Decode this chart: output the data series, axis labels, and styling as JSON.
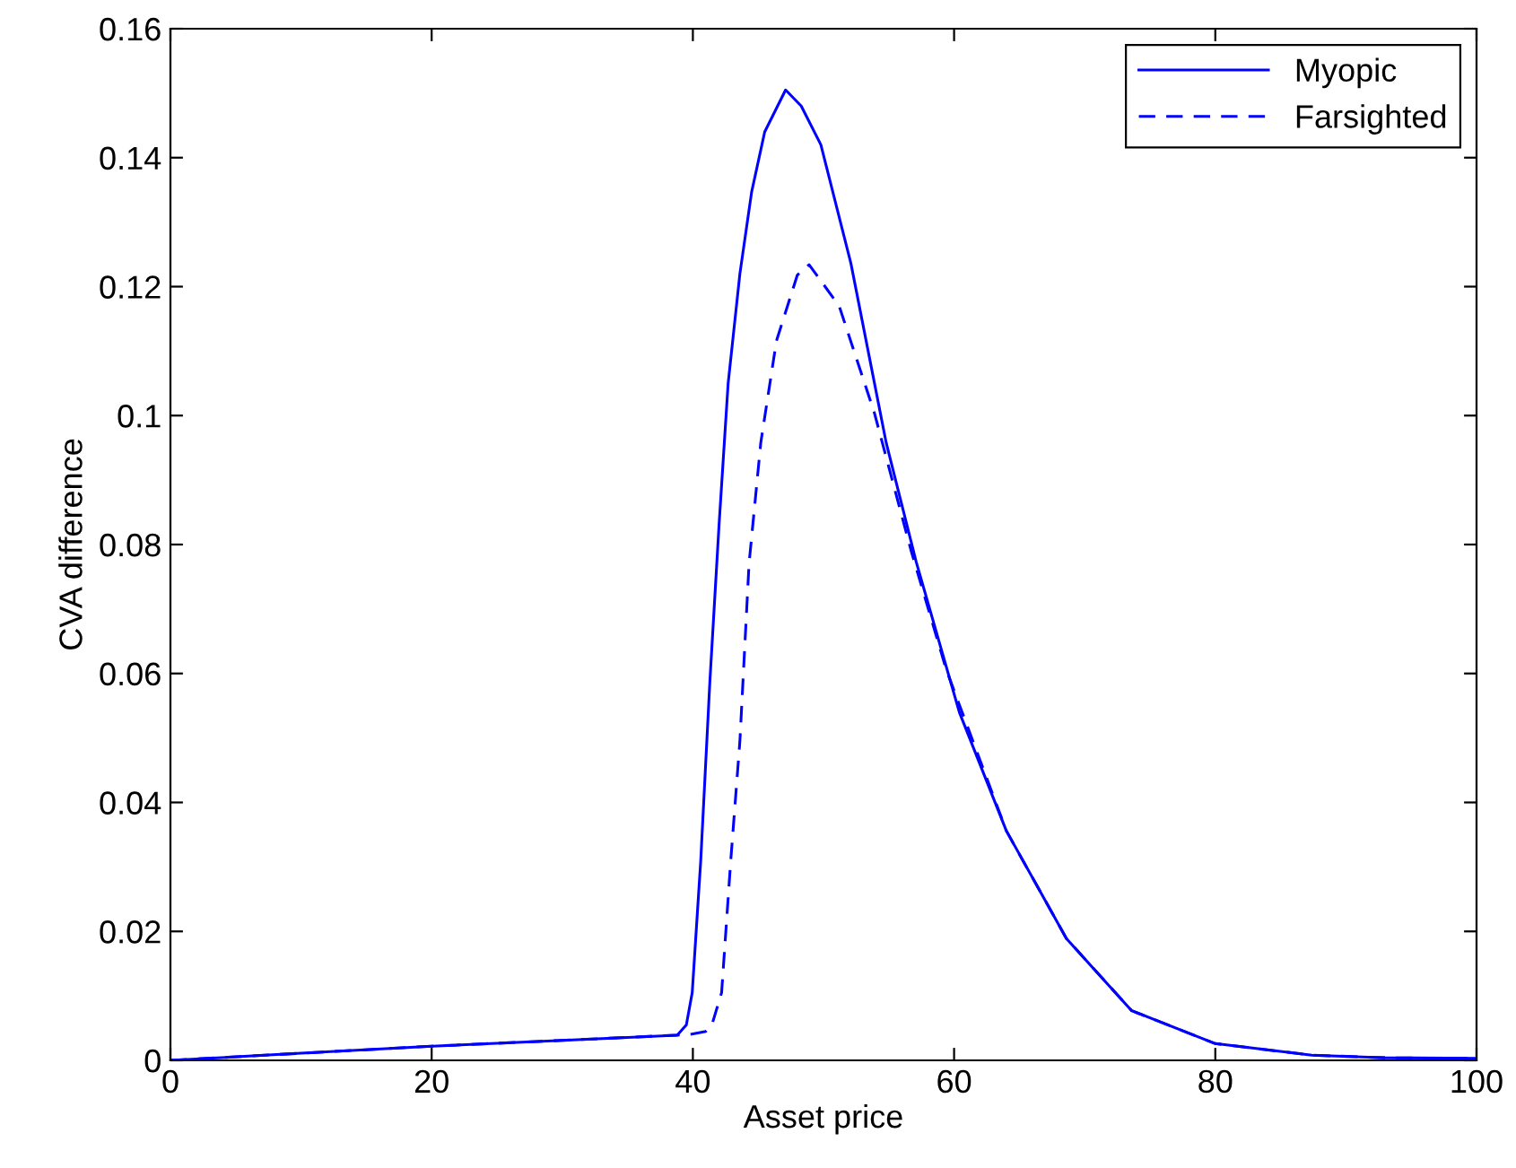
{
  "chart_data": {
    "type": "line",
    "xlabel": "Asset price",
    "ylabel": "CVA difference",
    "xlim": [
      0,
      100
    ],
    "ylim": [
      0,
      0.16
    ],
    "xticks": [
      0,
      20,
      40,
      60,
      80,
      100
    ],
    "yticks": [
      0,
      0.02,
      0.04,
      0.06,
      0.08,
      0.1,
      0.12,
      0.14,
      0.16
    ],
    "grid": false,
    "legend": "top right",
    "series": [
      {
        "name": "Myopic",
        "color": "#0000ff",
        "line_style": "solid",
        "x": [
          0,
          10,
          20,
          30,
          38.8,
          39.5,
          39.95,
          40.6,
          41.3,
          42.0,
          42.7,
          43.6,
          44.5,
          45.5,
          47.1,
          48.3,
          49.8,
          52.1,
          54.8,
          57.1,
          60.4,
          64.0,
          68.6,
          73.6,
          80,
          87.4,
          93,
          100
        ],
        "values": [
          0,
          0.0011,
          0.0022,
          0.0031,
          0.0039,
          0.0055,
          0.0105,
          0.0309,
          0.0587,
          0.0829,
          0.105,
          0.122,
          0.1347,
          0.144,
          0.1505,
          0.148,
          0.142,
          0.1236,
          0.0958,
          0.0773,
          0.054,
          0.0356,
          0.0189,
          0.0077,
          0.0026,
          0.0008,
          0.0004,
          0.0003
        ]
      },
      {
        "name": "Farsighted",
        "color": "#0000ff",
        "line_style": "dashed",
        "x": [
          0,
          10,
          20,
          30,
          39.7,
          41.0,
          41.5,
          42.2,
          42.9,
          43.6,
          44.3,
          45.2,
          46.4,
          48.0,
          48.9,
          51.2,
          53.9,
          56.7,
          59.4,
          64.0,
          68.6,
          73.6,
          80,
          87.4,
          93,
          100
        ],
        "values": [
          0,
          0.0011,
          0.0022,
          0.0031,
          0.004,
          0.0045,
          0.0058,
          0.0105,
          0.031,
          0.0495,
          0.077,
          0.0958,
          0.1116,
          0.1218,
          0.1234,
          0.117,
          0.1004,
          0.0791,
          0.0606,
          0.0356,
          0.0189,
          0.0077,
          0.0026,
          0.0008,
          0.0004,
          0.0003
        ]
      }
    ]
  }
}
